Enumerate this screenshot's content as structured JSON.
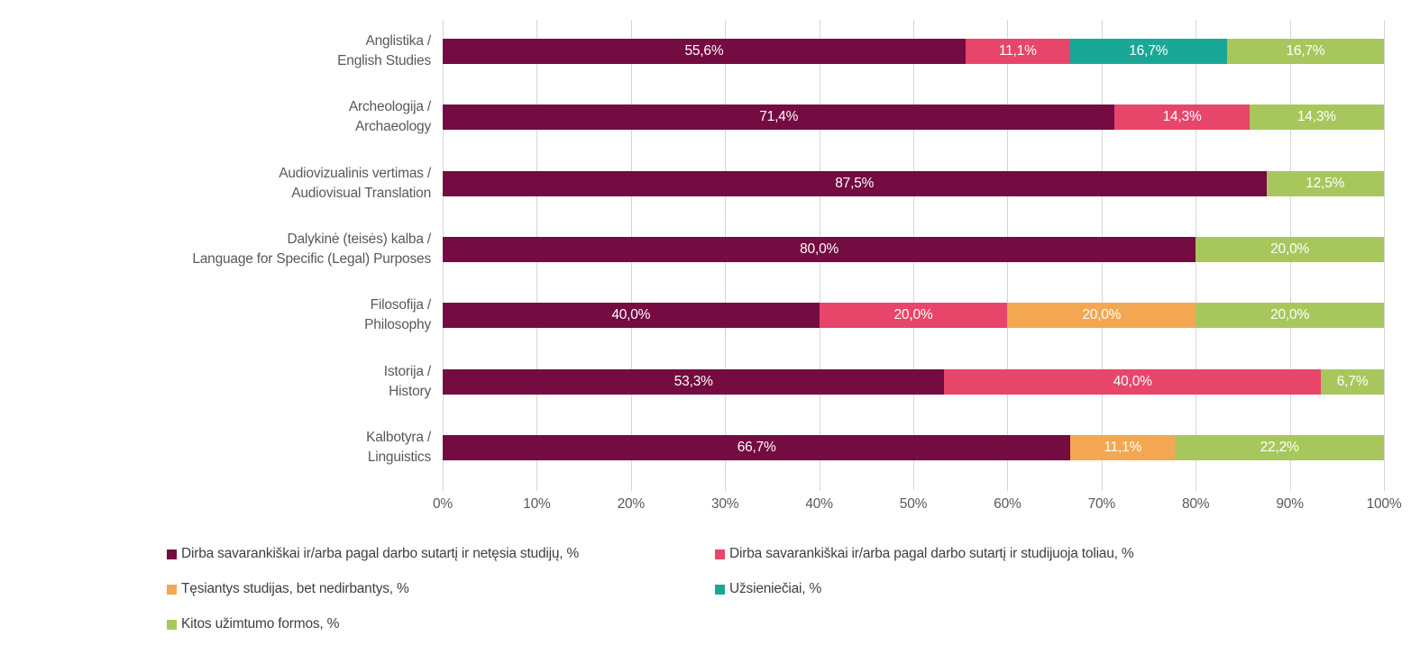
{
  "colors": {
    "background": "#FFFFFF",
    "grid": "#D6D6D6",
    "axis_text": "#595959",
    "legend_text": "#404040",
    "data_label_text": "#FFFFFF"
  },
  "chart_data": {
    "type": "bar",
    "orientation": "horizontal",
    "stacked": true,
    "grid": true,
    "legend_position": "bottom",
    "xlim": [
      0,
      100
    ],
    "x_ticks": [
      "0%",
      "10%",
      "20%",
      "30%",
      "40%",
      "50%",
      "60%",
      "70%",
      "80%",
      "90%",
      "100%"
    ],
    "categories": [
      [
        "Anglistika /",
        "English Studies"
      ],
      [
        "Archeologija /",
        "Archaeology"
      ],
      [
        "Audiovizualinis vertimas /",
        "Audiovisual Translation"
      ],
      [
        "Dalykinė (teisės) kalba /",
        "Language for Specific (Legal) Purposes"
      ],
      [
        "Filosofija /",
        "Philosophy"
      ],
      [
        "Istorija /",
        "History"
      ],
      [
        "Kalbotyra /",
        "Linguistics"
      ]
    ],
    "series": [
      {
        "name": "Dirba savarankiškai ir/arba pagal darbo sutartį ir netęsia studijų, %",
        "color": "#740B41",
        "values": [
          55.6,
          71.4,
          87.5,
          80.0,
          40.0,
          53.3,
          66.7
        ],
        "labels": [
          "55,6%",
          "71,4%",
          "87,5%",
          "80,0%",
          "40,0%",
          "53,3%",
          "66,7%"
        ]
      },
      {
        "name": "Dirba savarankiškai ir/arba pagal darbo sutartį ir studijuoja toliau, %",
        "color": "#E8456B",
        "values": [
          11.1,
          14.3,
          0,
          0,
          20.0,
          40.0,
          0
        ],
        "labels": [
          "11,1%",
          "14,3%",
          "",
          "",
          "20,0%",
          "40,0%",
          ""
        ]
      },
      {
        "name": "Tęsiantys studijas, bet nedirbantys, %",
        "color": "#F3A752",
        "values": [
          0,
          0,
          0,
          0,
          20.0,
          0,
          11.1
        ],
        "labels": [
          "",
          "",
          "",
          "",
          "20,0%",
          "",
          "11,1%"
        ]
      },
      {
        "name": "Užsieniečiai, %",
        "color": "#1AA896",
        "values": [
          16.7,
          0,
          0,
          0,
          0,
          0,
          0
        ],
        "labels": [
          "16,7%",
          "",
          "",
          "",
          "",
          "",
          ""
        ]
      },
      {
        "name": "Kitos užimtumo formos, %",
        "color": "#A7C75C",
        "values": [
          16.7,
          14.3,
          12.5,
          20.0,
          20.0,
          6.7,
          22.2
        ],
        "labels": [
          "16,7%",
          "14,3%",
          "12,5%",
          "20,0%",
          "20,0%",
          "6,7%",
          "22,2%"
        ]
      }
    ]
  }
}
